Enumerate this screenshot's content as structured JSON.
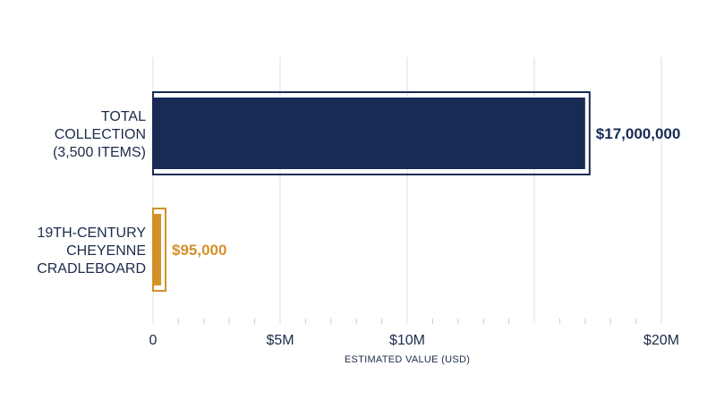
{
  "chart_data": {
    "type": "bar",
    "orientation": "horizontal",
    "categories": [
      [
        "TOTAL",
        "COLLECTION",
        "(3,500 ITEMS)"
      ],
      [
        "19TH-CENTURY",
        "CHEYENNE",
        "CRADLEBOARD"
      ]
    ],
    "values": [
      17000000,
      95000
    ],
    "value_labels": [
      "$17,000,000",
      "$95,000"
    ],
    "colors": [
      "#172b54",
      "#d4912a"
    ],
    "xlim": [
      0,
      20000000
    ],
    "xticks": [
      {
        "value": 0,
        "label": "0"
      },
      {
        "value": 5000000,
        "label": "$5M"
      },
      {
        "value": 10000000,
        "label": "$10M"
      },
      {
        "value": 20000000,
        "label": "$20M"
      }
    ],
    "gridlines": [
      0,
      5000000,
      10000000,
      15000000,
      20000000
    ],
    "xlabel": "ESTIMATED VALUE (USD)",
    "title": "",
    "grid": true,
    "legend": "none"
  }
}
